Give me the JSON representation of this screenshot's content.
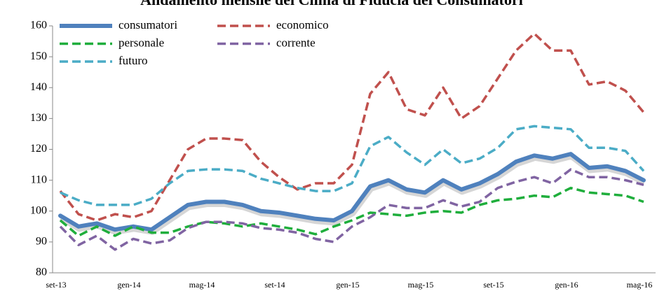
{
  "chart_data": {
    "type": "line",
    "title": "Andamento mensile del Clima di Fiducia dei Consumatori",
    "categories": [
      "set-13",
      null,
      null,
      null,
      "gen-14",
      null,
      null,
      null,
      "mag-14",
      null,
      null,
      null,
      "set-14",
      null,
      null,
      null,
      "gen-15",
      null,
      null,
      null,
      "mag-15",
      null,
      null,
      null,
      "set-15",
      null,
      null,
      null,
      "gen-16",
      null,
      null,
      null,
      "mag-16"
    ],
    "series": [
      {
        "name": "consumatori",
        "color": "#4f81bd",
        "values": [
          98.5,
          95,
          96,
          94,
          95,
          94,
          98,
          102,
          103,
          103,
          102,
          100,
          99.5,
          98.5,
          97.5,
          97,
          100,
          108,
          110,
          107,
          106,
          110,
          107,
          109,
          112,
          116,
          118,
          117,
          118.5,
          114,
          114.5,
          113,
          110
        ]
      },
      {
        "name": "economico",
        "color": "#c0504d",
        "values": [
          106.5,
          99,
          97,
          99,
          98,
          100,
          110,
          120,
          123.5,
          123.5,
          123,
          116,
          111,
          107,
          109,
          109,
          115,
          138,
          145,
          133,
          131,
          140,
          130,
          134,
          143,
          152,
          157.5,
          152,
          152,
          141,
          142,
          139,
          132
        ]
      },
      {
        "name": "personale",
        "color": "#1fae3c",
        "values": [
          97,
          92,
          95,
          92,
          95,
          93,
          93,
          95,
          96.5,
          96,
          95,
          96,
          95,
          94,
          92.5,
          95,
          97,
          99.5,
          99,
          98.5,
          99.5,
          100,
          99.5,
          102,
          103.5,
          104,
          105,
          104.5,
          107.5,
          106,
          105.5,
          105,
          103
        ]
      },
      {
        "name": "corrente",
        "color": "#8064a2",
        "values": [
          95,
          89,
          92,
          87.5,
          91,
          89.5,
          90.5,
          94.5,
          96.5,
          96.5,
          96,
          94.5,
          94,
          93,
          91,
          90,
          95,
          98,
          102,
          101,
          101,
          103.5,
          101.5,
          103,
          107.5,
          109.5,
          111,
          109,
          113.5,
          111,
          111,
          110,
          108.5
        ]
      },
      {
        "name": "futuro",
        "color": "#4bacc6",
        "values": [
          106,
          103.5,
          102,
          102,
          102,
          104,
          109,
          113,
          113.5,
          113.5,
          113,
          110.5,
          109,
          107.5,
          106.5,
          106.5,
          109,
          121,
          124,
          119,
          115,
          120,
          115.5,
          117,
          120.5,
          126.5,
          127.5,
          127,
          126.5,
          120.5,
          120.5,
          119.5,
          113
        ]
      }
    ],
    "ylim": [
      80,
      160
    ],
    "yticks": [
      80,
      90,
      100,
      110,
      120,
      130,
      140,
      150,
      160
    ]
  }
}
